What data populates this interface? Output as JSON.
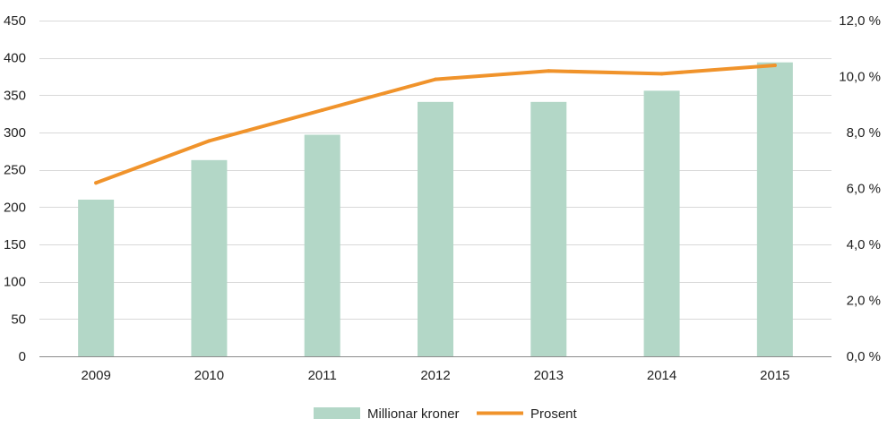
{
  "chart_data": {
    "type": "bar",
    "categories": [
      "2009",
      "2010",
      "2011",
      "2012",
      "2013",
      "2014",
      "2015"
    ],
    "series": [
      {
        "name": "Millionar kroner",
        "type": "bar",
        "axis": "left",
        "color": "#b3d7c7",
        "values": [
          210,
          263,
          297,
          341,
          341,
          356,
          394
        ]
      },
      {
        "name": "Prosent",
        "type": "line",
        "axis": "right",
        "color": "#f0932b",
        "values": [
          6.2,
          7.7,
          8.8,
          9.9,
          10.2,
          10.1,
          10.4
        ]
      }
    ],
    "y_left": {
      "ylim": [
        0,
        450
      ],
      "ticks": [
        0,
        50,
        100,
        150,
        200,
        250,
        300,
        350,
        400,
        450
      ],
      "tick_labels": [
        "0",
        "50",
        "100",
        "150",
        "200",
        "250",
        "300",
        "350",
        "400",
        "450"
      ]
    },
    "y_right": {
      "ylim": [
        0,
        12
      ],
      "ticks": [
        0,
        2,
        4,
        6,
        8,
        10,
        12
      ],
      "tick_labels": [
        "0,0 %",
        "2,0 %",
        "4,0 %",
        "6,0 %",
        "8,0 %",
        "10,0 %",
        "12,0 %"
      ]
    },
    "gridlines": true,
    "legend_position": "bottom",
    "title": "",
    "xlabel": "",
    "ylabel": ""
  }
}
